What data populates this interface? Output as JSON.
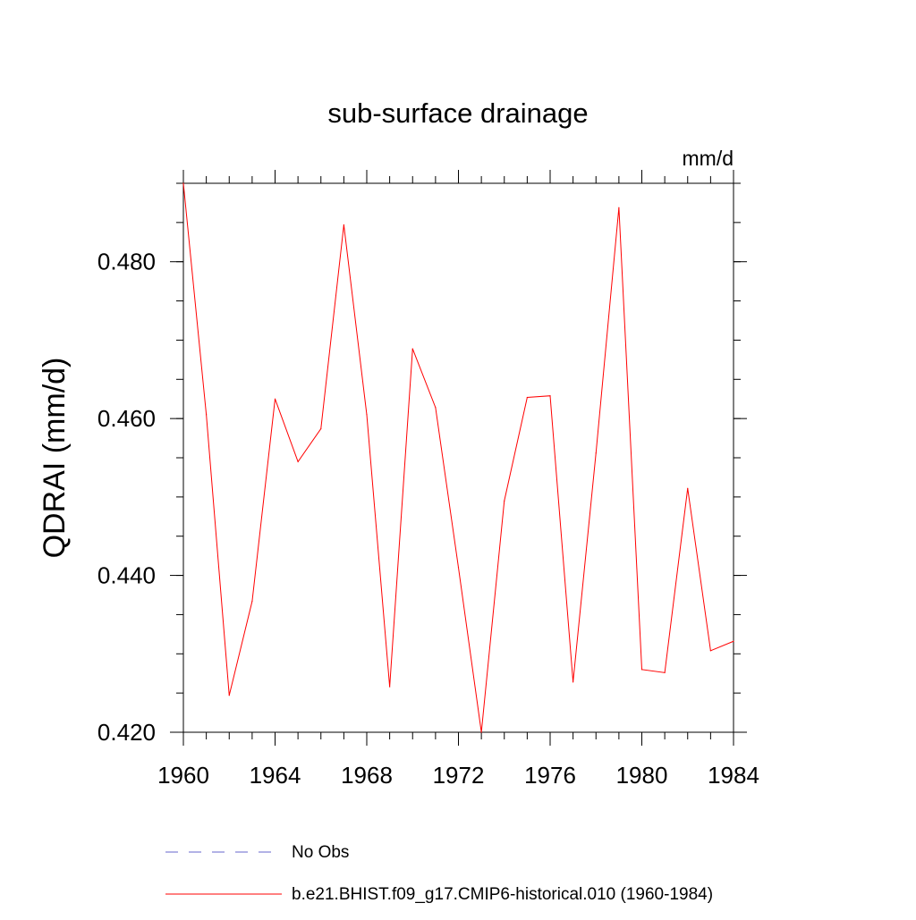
{
  "chart_data": {
    "type": "line",
    "title": "sub-surface drainage",
    "units_label": "mm/d",
    "ylabel": "QDRAI  (mm/d)",
    "xlabel": "",
    "xlim": [
      1960,
      1984
    ],
    "ylim": [
      0.42,
      0.49
    ],
    "xticks": [
      1960,
      1964,
      1968,
      1972,
      1976,
      1980,
      1984
    ],
    "yticks": [
      0.42,
      0.44,
      0.46,
      0.48
    ],
    "ytick_labels": [
      "0.420",
      "0.440",
      "0.460",
      "0.480"
    ],
    "x_minor_step": 1,
    "y_minor_step": 0.005,
    "grid": false,
    "legend_position": "bottom-center",
    "series": [
      {
        "name": "b.e21.BHIST.f09_g17.CMIP6-historical.010 (1960-1984)",
        "color": "#ff0000",
        "style": "solid",
        "x": [
          1960,
          1961,
          1962,
          1963,
          1964,
          1965,
          1966,
          1967,
          1968,
          1969,
          1970,
          1971,
          1972,
          1973,
          1974,
          1975,
          1976,
          1977,
          1978,
          1979,
          1980,
          1981,
          1982,
          1983,
          1984
        ],
        "y": [
          0.49,
          0.4605,
          0.4247,
          0.4367,
          0.4625,
          0.4545,
          0.4587,
          0.4847,
          0.4605,
          0.4258,
          0.4689,
          0.4614,
          0.441,
          0.42,
          0.4495,
          0.4627,
          0.4629,
          0.4264,
          0.4556,
          0.4869,
          0.428,
          0.4276,
          0.4511,
          0.4304,
          0.4316
        ]
      }
    ],
    "legend": [
      {
        "label": "No Obs",
        "color": "#6666cc",
        "style": "dashed"
      },
      {
        "label": "b.e21.BHIST.f09_g17.CMIP6-historical.010 (1960-1984)",
        "color": "#ff0000",
        "style": "solid"
      }
    ]
  }
}
